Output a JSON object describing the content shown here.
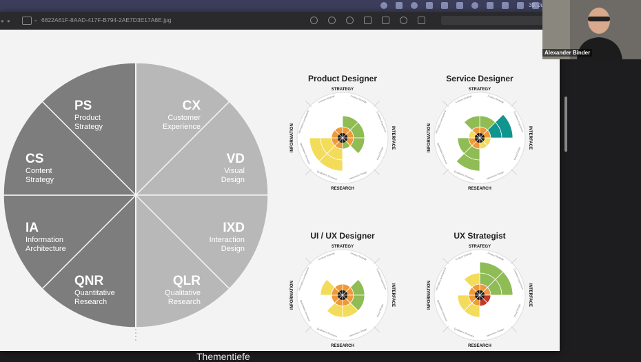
{
  "window": {
    "filename": "6822A61F-8AAD-417F-B794-2AE7D3E17A8E.jpg"
  },
  "menubar": {
    "clock": "30. Juni"
  },
  "wheel": {
    "segments": [
      {
        "code": "PS",
        "lines": [
          "Product",
          "Strategy"
        ]
      },
      {
        "code": "CX",
        "lines": [
          "Customer",
          "Experience"
        ]
      },
      {
        "code": "VD",
        "lines": [
          "Visual",
          "Design"
        ]
      },
      {
        "code": "IXD",
        "lines": [
          "Interaction",
          "Design"
        ]
      },
      {
        "code": "QLR",
        "lines": [
          "Qualitative",
          "Research"
        ]
      },
      {
        "code": "QNR",
        "lines": [
          "Quantitative",
          "Research"
        ]
      },
      {
        "code": "IA",
        "lines": [
          "Information",
          "Architecture"
        ]
      },
      {
        "code": "CS",
        "lines": [
          "Content",
          "Strategy"
        ]
      }
    ]
  },
  "axis_labels": {
    "top": "STRATEGY",
    "bottom": "RESEARCH",
    "left": "INFORMATION",
    "right": "INTERFACE"
  },
  "ring_labels": [
    "Product Strategy",
    "Customer Experience",
    "Visual Design",
    "Interaction Design",
    "Qualitative Research",
    "Quantitative Research",
    "Information Architecture",
    "Content Strategy"
  ],
  "colors": {
    "inner": "#ef9a3a",
    "green": "#8fbc55",
    "yellow": "#f3dc5a",
    "teal": "#11958f",
    "red": "#c0392b",
    "wheel_dark": "#7d7d7d",
    "wheel_light": "#b8b8b8"
  },
  "profiles": [
    {
      "title": "Product Designer",
      "segments": [
        {
          "level": 2,
          "color": "green"
        },
        {
          "level": 2,
          "color": "green"
        },
        {
          "level": 2,
          "color": "green"
        },
        {
          "level": 1,
          "color": "green"
        },
        {
          "level": 3,
          "color": "yellow"
        },
        {
          "level": 3,
          "color": "yellow"
        },
        {
          "level": 1,
          "color": "inner"
        },
        {
          "level": 1,
          "color": "inner"
        }
      ]
    },
    {
      "title": "Service Designer",
      "segments": [
        {
          "level": 2,
          "color": "green"
        },
        {
          "level": 3,
          "color": "teal"
        },
        {
          "level": 1,
          "color": "yellow"
        },
        {
          "level": 1,
          "color": "yellow"
        },
        {
          "level": 3,
          "color": "green"
        },
        {
          "level": 2,
          "color": "green"
        },
        {
          "level": 1,
          "color": "yellow"
        },
        {
          "level": 2,
          "color": "green"
        }
      ]
    },
    {
      "title": "UI / UX Designer",
      "segments": [
        {
          "level": 1,
          "color": "inner"
        },
        {
          "level": 2,
          "color": "green"
        },
        {
          "level": 2,
          "color": "green"
        },
        {
          "level": 2,
          "color": "yellow"
        },
        {
          "level": 2,
          "color": "yellow"
        },
        {
          "level": 1,
          "color": "inner"
        },
        {
          "level": 2,
          "color": "yellow"
        },
        {
          "level": 1,
          "color": "inner"
        }
      ]
    },
    {
      "title": "UX Strategist",
      "segments": [
        {
          "level": 3,
          "color": "green"
        },
        {
          "level": 3,
          "color": "green"
        },
        {
          "level": 1,
          "color": "red"
        },
        {
          "level": 1,
          "color": "red"
        },
        {
          "level": 2,
          "color": "yellow"
        },
        {
          "level": 2,
          "color": "yellow"
        },
        {
          "level": 1,
          "color": "inner"
        },
        {
          "level": 2,
          "color": "yellow"
        }
      ]
    }
  ],
  "caption": "Thementiefe",
  "participant": {
    "name": "Alexander Binder"
  }
}
